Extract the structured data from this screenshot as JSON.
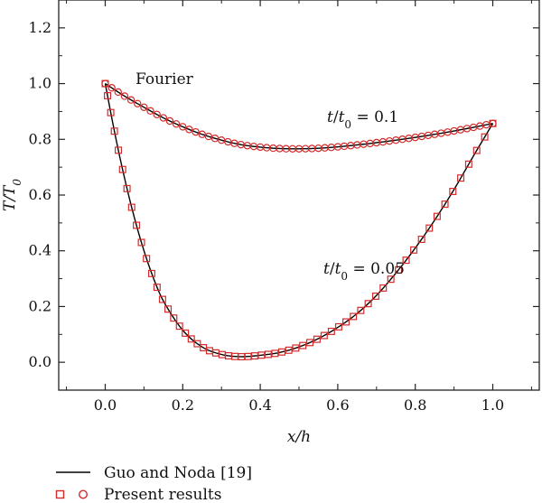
{
  "chart_data": {
    "type": "line",
    "xlabel": "x/h",
    "ylabel": "T/T0",
    "xlim": [
      -0.12,
      1.12
    ],
    "ylim": [
      -0.1,
      1.3
    ],
    "x_ticks": [
      "0.0",
      "0.2",
      "0.4",
      "0.6",
      "0.8",
      "1.0"
    ],
    "y_ticks": [
      "0.0",
      "0.2",
      "0.4",
      "0.6",
      "0.8",
      "1.0",
      "1.2"
    ],
    "grid": false,
    "legend_position": "bottom",
    "annotations": [
      {
        "text": "Fourier",
        "x": 0.08,
        "y": 1.03
      },
      {
        "text": "t/t0 = 0.1",
        "x": 0.7,
        "y": 0.88
      },
      {
        "text": "t/t0 = 0.05",
        "x": 0.66,
        "y": 0.34
      }
    ],
    "series": [
      {
        "name": "Guo and Noda [19]",
        "style": "line",
        "color": "#000000",
        "curves": [
          {
            "label": "t/t0 = 0.1",
            "x": [
              0.0,
              0.05,
              0.1,
              0.15,
              0.2,
              0.25,
              0.3,
              0.35,
              0.4,
              0.45,
              0.5,
              0.55,
              0.6,
              0.65,
              0.7,
              0.75,
              0.8,
              0.85,
              0.9,
              0.95,
              1.0
            ],
            "y": [
              1.0,
              0.955,
              0.915,
              0.877,
              0.845,
              0.818,
              0.797,
              0.781,
              0.772,
              0.767,
              0.766,
              0.768,
              0.773,
              0.78,
              0.788,
              0.797,
              0.807,
              0.818,
              0.83,
              0.843,
              0.857
            ]
          },
          {
            "label": "t/t0 = 0.05",
            "x": [
              0.0,
              0.025,
              0.05,
              0.075,
              0.1,
              0.125,
              0.15,
              0.2,
              0.25,
              0.3,
              0.35,
              0.4,
              0.45,
              0.5,
              0.55,
              0.6,
              0.65,
              0.7,
              0.75,
              0.8,
              0.85,
              0.9,
              0.95,
              1.0
            ],
            "y": [
              1.0,
              0.82,
              0.66,
              0.52,
              0.4,
              0.3,
              0.22,
              0.115,
              0.055,
              0.028,
              0.02,
              0.025,
              0.035,
              0.055,
              0.085,
              0.125,
              0.175,
              0.24,
              0.32,
              0.41,
              0.51,
              0.62,
              0.74,
              0.857
            ]
          }
        ]
      },
      {
        "name": "Present results",
        "style": "markers",
        "color": "#d42a2a",
        "curves": [
          {
            "label": "t/t0 = 0.1",
            "marker": "circle"
          },
          {
            "label": "t/t0 = 0.05",
            "marker": "square"
          }
        ]
      }
    ]
  },
  "legend": {
    "line_label": "Guo and Noda [19]",
    "markers_label": "Present results"
  }
}
